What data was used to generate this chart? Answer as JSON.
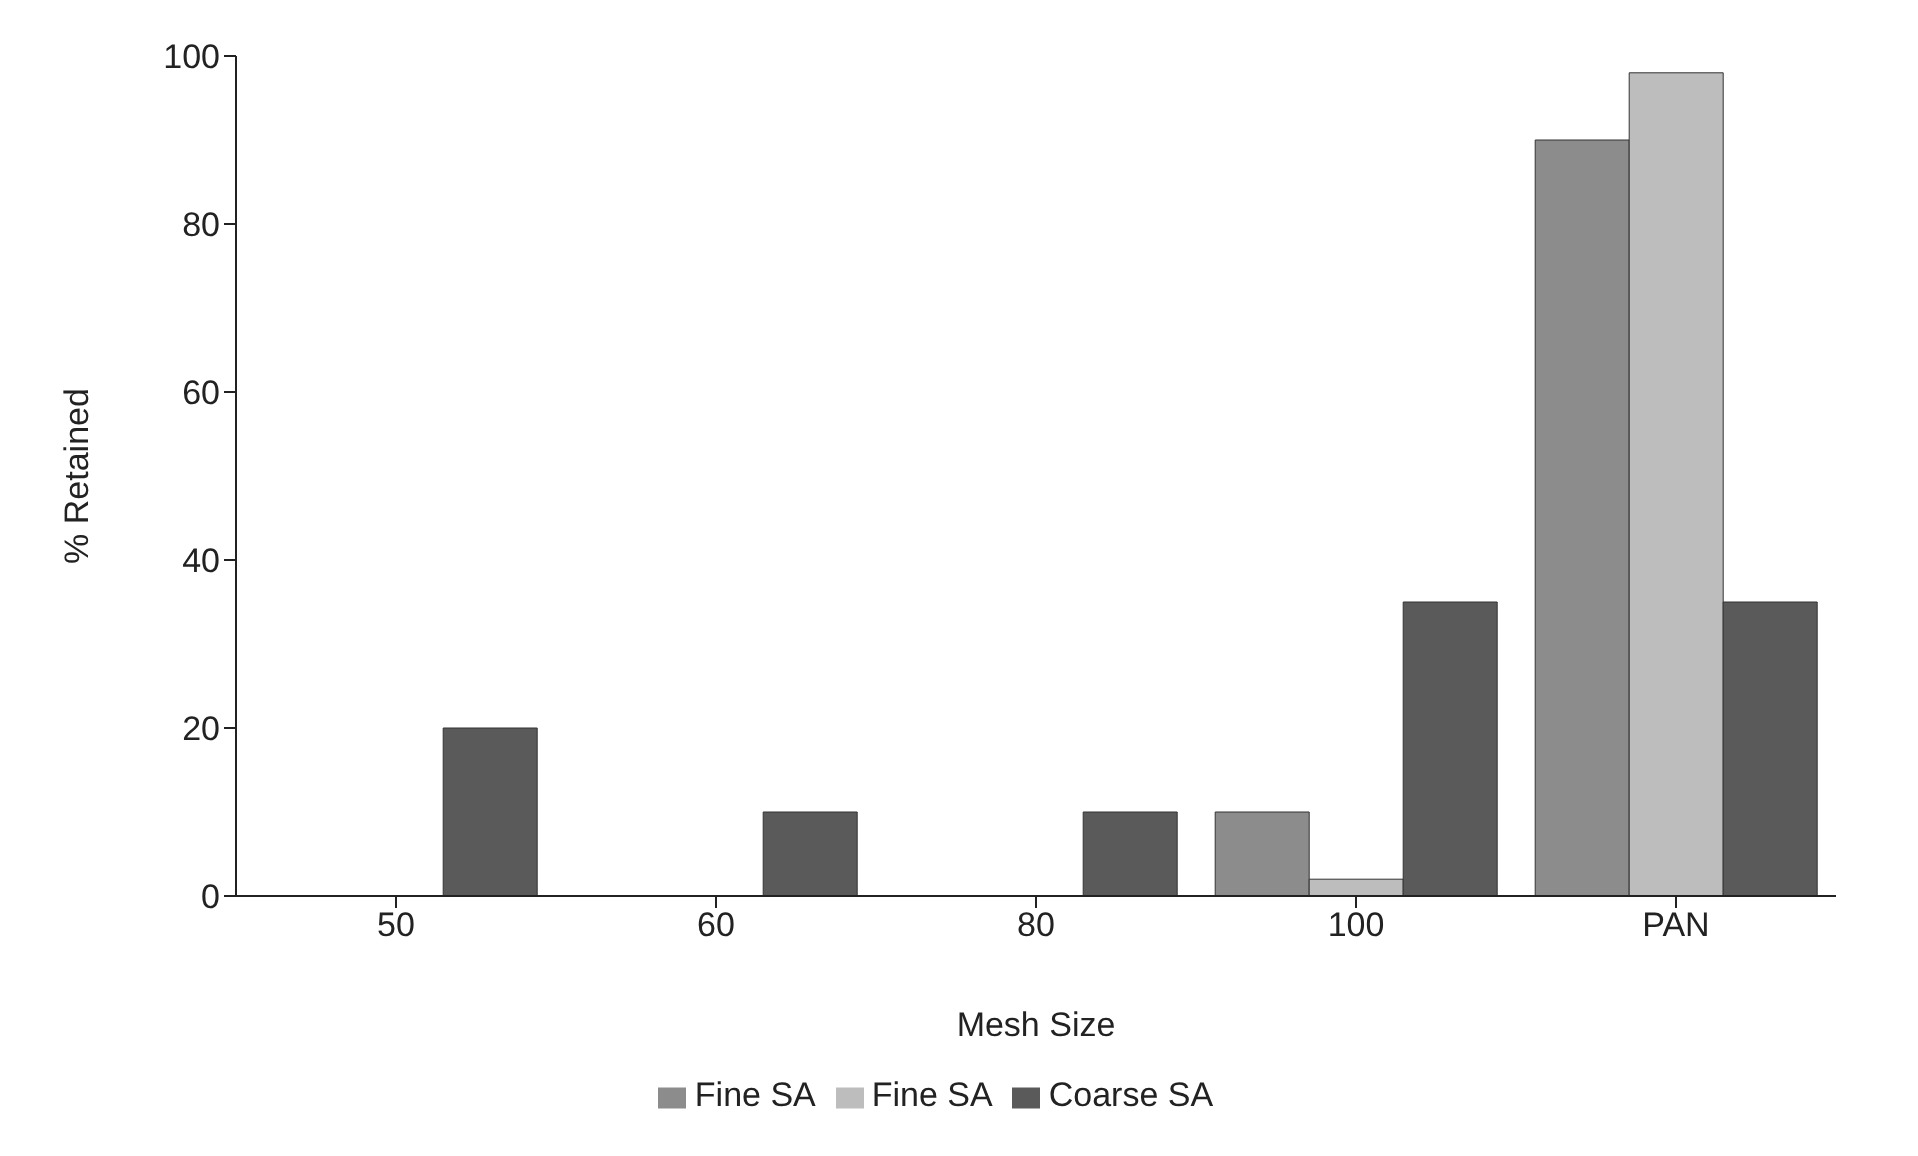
{
  "chart_data": {
    "type": "bar",
    "xlabel": "Mesh Size",
    "ylabel": "% Retained",
    "categories": [
      "50",
      "60",
      "80",
      "100",
      "PAN"
    ],
    "series": [
      {
        "name": "Fine SA",
        "color": "#8c8c8c",
        "values": [
          0,
          0,
          0,
          10,
          90
        ]
      },
      {
        "name": "Fine SA",
        "color": "#bdbdbd",
        "values": [
          0,
          0,
          0,
          2,
          98
        ]
      },
      {
        "name": "Coarse SA",
        "color": "#5a5a5a",
        "values": [
          20,
          10,
          10,
          35,
          35
        ]
      }
    ],
    "ylim": [
      0,
      100
    ],
    "yticks": [
      0,
      20,
      40,
      60,
      80,
      100
    ],
    "legend": "bottom"
  }
}
